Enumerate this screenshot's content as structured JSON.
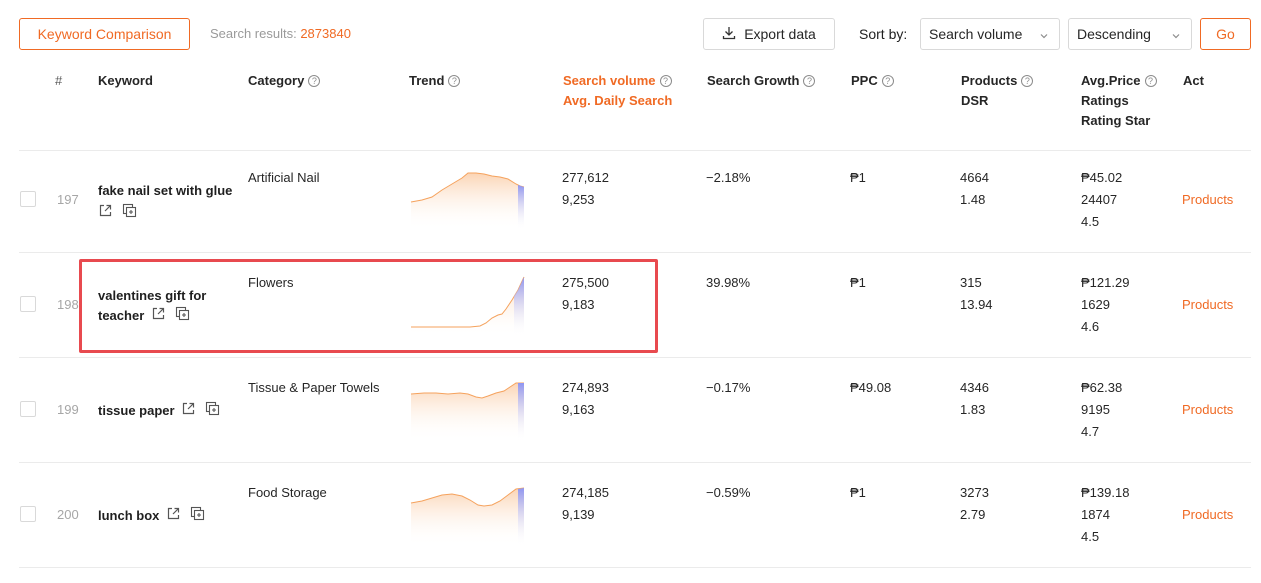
{
  "toolbar": {
    "compare_label": "Keyword Comparison",
    "results_label": "Search results:",
    "results_count": "2873840",
    "export_label": "Export data",
    "sort_label": "Sort by:",
    "sort_field": "Search volume",
    "sort_order": "Descending",
    "go_label": "Go"
  },
  "headers": {
    "num": "#",
    "keyword": "Keyword",
    "category": "Category",
    "trend": "Trend",
    "search_volume": "Search volume",
    "avg_daily": "Avg. Daily Search",
    "growth": "Search Growth",
    "ppc": "PPC",
    "products": "Products",
    "dsr": "DSR",
    "avg_price": "Avg.Price",
    "ratings": "Ratings",
    "rating_star": "Rating Star",
    "act": "Act"
  },
  "rows": [
    {
      "num": "197",
      "keyword_line1": "fake nail set with glue",
      "keyword_line2": "",
      "category": "Artificial Nail",
      "volume": "277,612",
      "daily": "9,253",
      "growth": "−2.18%",
      "ppc": "₱1",
      "products": "4664",
      "dsr": "1.48",
      "price": "₱45.02",
      "ratings": "24407",
      "stars": "4.5",
      "action": "Products"
    },
    {
      "num": "198",
      "keyword_line1": "valentines gift for",
      "keyword_line2": "teacher",
      "category": "Flowers",
      "volume": "275,500",
      "daily": "9,183",
      "growth": "39.98%",
      "ppc": "₱1",
      "products": "315",
      "dsr": "13.94",
      "price": "₱121.29",
      "ratings": "1629",
      "stars": "4.6",
      "action": "Products"
    },
    {
      "num": "199",
      "keyword_line1": "tissue paper",
      "keyword_line2": "",
      "category": "Tissue & Paper Towels",
      "volume": "274,893",
      "daily": "9,163",
      "growth": "−0.17%",
      "ppc": "₱49.08",
      "products": "4346",
      "dsr": "1.83",
      "price": "₱62.38",
      "ratings": "9195",
      "stars": "4.7",
      "action": "Products"
    },
    {
      "num": "200",
      "keyword_line1": "lunch box",
      "keyword_line2": "",
      "category": "Food Storage",
      "volume": "274,185",
      "daily": "9,139",
      "growth": "−0.59%",
      "ppc": "₱1",
      "products": "3273",
      "dsr": "2.79",
      "price": "₱139.18",
      "ratings": "1874",
      "stars": "4.5",
      "action": "Products"
    }
  ],
  "colors": {
    "accent": "#f06a24",
    "highlight_border": "#e84a4f",
    "trend_line": "#f5a25d",
    "trend_tail": "#7b83ee"
  },
  "icons": {
    "export": "download-icon",
    "chevron": "chevron-down-icon",
    "help": "question-circle-icon",
    "external": "external-link-icon",
    "copy": "copy-icon"
  }
}
